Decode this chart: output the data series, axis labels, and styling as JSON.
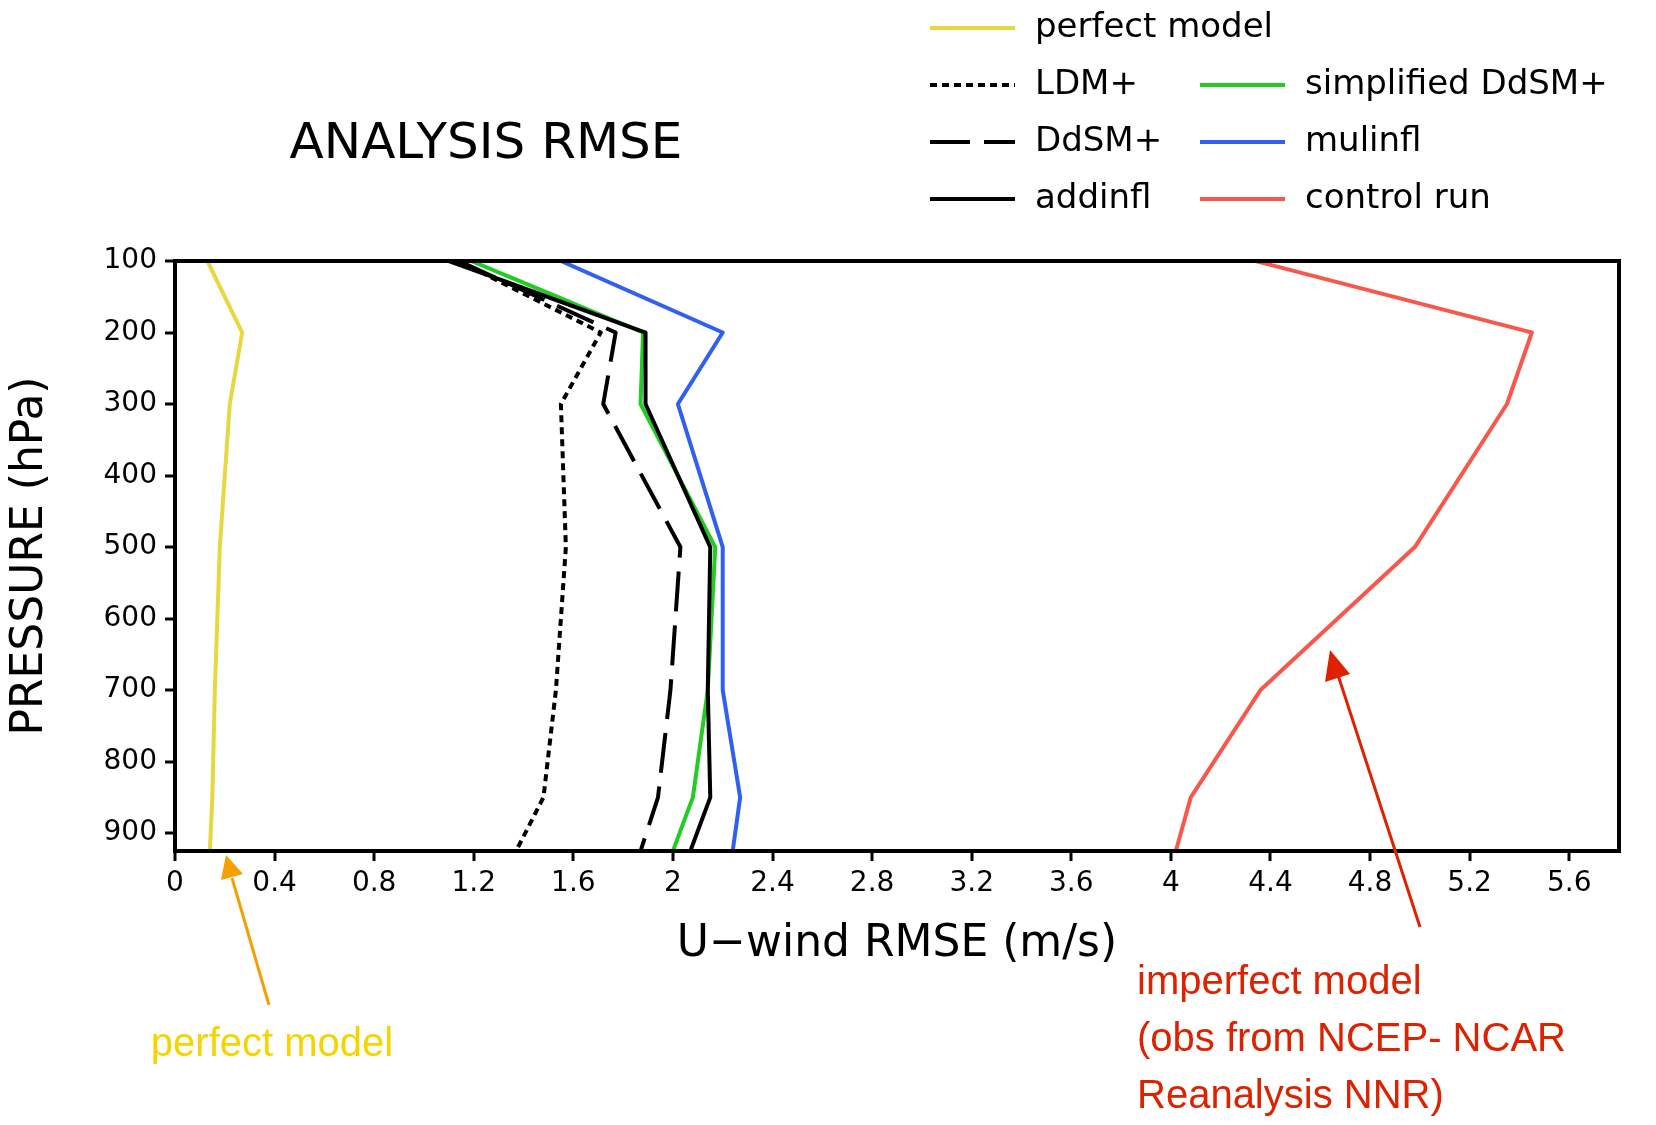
{
  "chart_data": {
    "type": "line",
    "title": "ANALYSIS RMSE",
    "xlabel": "U−wind RMSE (m/s)",
    "ylabel": "PRESSURE (hPa)",
    "xlim": [
      0,
      5.8
    ],
    "xticks": [
      0,
      0.4,
      0.8,
      1.2,
      1.6,
      2,
      2.4,
      2.8,
      3.2,
      3.6,
      4,
      4.4,
      4.8,
      5.2,
      5.6
    ],
    "ylim": [
      925,
      100
    ],
    "yticks": [
      100,
      200,
      300,
      400,
      500,
      600,
      700,
      800,
      900
    ],
    "grid": false,
    "legend": "top right",
    "marker": "none",
    "series": [
      {
        "name": "perfect model",
        "color": "#e8d840",
        "line_style": "solid",
        "x": [
          0.13,
          0.27,
          0.22,
          0.18,
          0.16,
          0.15,
          0.14
        ],
        "values": [
          100,
          200,
          300,
          500,
          700,
          850,
          925
        ]
      },
      {
        "name": "LDM+",
        "color": "#000000",
        "line_style": "dotted",
        "x": [
          1.14,
          1.71,
          1.55,
          1.57,
          1.53,
          1.48,
          1.37
        ],
        "values": [
          100,
          200,
          300,
          500,
          700,
          850,
          925
        ]
      },
      {
        "name": "DdSM+",
        "color": "#000000",
        "line_style": "dashed",
        "x": [
          1.14,
          1.77,
          1.72,
          2.03,
          1.99,
          1.94,
          1.87
        ],
        "values": [
          100,
          200,
          300,
          500,
          700,
          850,
          925
        ]
      },
      {
        "name": "addinfl",
        "color": "#000000",
        "line_style": "solid",
        "x": [
          1.1,
          1.89,
          1.89,
          2.15,
          2.14,
          2.15,
          2.07
        ],
        "values": [
          100,
          200,
          300,
          500,
          700,
          850,
          925
        ]
      },
      {
        "name": "simplified DdSM+",
        "color": "#22cc22",
        "line_style": "solid",
        "x": [
          1.19,
          1.88,
          1.87,
          2.17,
          2.14,
          2.08,
          2.0
        ],
        "values": [
          100,
          200,
          300,
          500,
          700,
          850,
          925
        ]
      },
      {
        "name": "mulinfl",
        "color": "#3060f0",
        "line_style": "solid",
        "x": [
          1.55,
          2.2,
          2.02,
          2.2,
          2.2,
          2.27,
          2.24
        ],
        "values": [
          100,
          200,
          300,
          500,
          700,
          850,
          925
        ]
      },
      {
        "name": "control run",
        "color": "#f8584c",
        "line_style": "solid",
        "x": [
          4.34,
          5.45,
          5.35,
          4.98,
          4.36,
          4.08,
          4.02
        ],
        "values": [
          100,
          200,
          300,
          500,
          700,
          850,
          925
        ]
      }
    ],
    "annotations": [
      "perfect model",
      "imperfect model\n(obs from NCEP- NCAR\nReanalysis NNR)"
    ]
  }
}
